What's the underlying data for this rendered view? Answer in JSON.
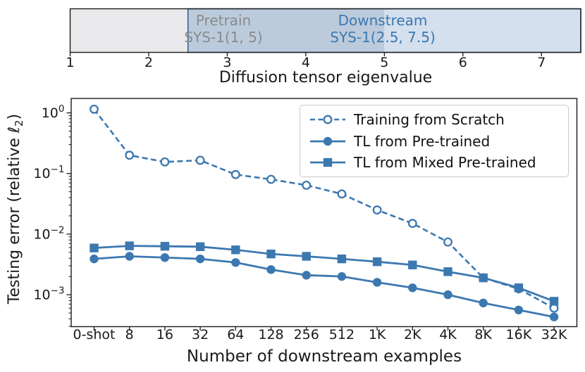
{
  "colors": {
    "accent": "#3c78b0",
    "pretrain_text": "#8a8a8a",
    "downstream_text": "#3c78b0",
    "bar_gray": "#e9e9eb",
    "bar_overlap": "#bccbdc",
    "bar_blue": "#d4e0ee",
    "bar_blue_edge": "#2d5e94",
    "bar_border": "#1b1b1b",
    "axis": "#1a1a1a",
    "legend_border": "#c9c9c9"
  },
  "chart_data": [
    {
      "type": "bar",
      "subtype": "horizontal-range-intervals",
      "xlabel": "Diffusion tensor eigenvalue",
      "xlim": [
        1,
        7.5
      ],
      "xticks": [
        "1",
        "2",
        "3",
        "4",
        "5",
        "6",
        "7"
      ],
      "intervals": [
        {
          "name": "Pretrain",
          "detail": "SYS-1(1, 5)",
          "range": [
            1,
            5
          ],
          "label_center_x": 3.0
        },
        {
          "name": "Downstream",
          "detail": "SYS-1(2.5, 7.5)",
          "range": [
            2.5,
            7.5
          ],
          "label_center_x": 5.0
        }
      ]
    },
    {
      "type": "line",
      "yscale": "log",
      "xlabel": "Number of downstream examples",
      "ylabel": "Testing error (relative ℓ₂)",
      "ylabel_parts": {
        "prefix": "Testing error (relative ℓ",
        "sub": "2",
        "suffix": ")"
      },
      "categories": [
        "0-shot",
        "8",
        "16",
        "32",
        "64",
        "128",
        "256",
        "512",
        "1K",
        "2K",
        "4K",
        "8K",
        "16K",
        "32K"
      ],
      "ytick_base": "10",
      "ytick_exponents": [
        "0",
        "−1",
        "−2",
        "−3"
      ],
      "ylim": [
        0.0003,
        1.73
      ],
      "grid": false,
      "legend_position": "upper right",
      "series": [
        {
          "name": "Training from Scratch",
          "marker": "open-circle",
          "line": "dashed",
          "values": [
            1.15,
            0.2,
            0.155,
            0.165,
            0.096,
            0.08,
            0.064,
            0.046,
            0.025,
            0.015,
            0.0074,
            0.0019,
            0.00125,
            0.0006
          ]
        },
        {
          "name": "TL from Pre-trained",
          "marker": "filled-circle",
          "line": "solid",
          "values": [
            0.0039,
            0.0043,
            0.0041,
            0.0039,
            0.0034,
            0.0026,
            0.0021,
            0.002,
            0.0016,
            0.0013,
            0.001,
            0.00073,
            0.00056,
            0.00043
          ]
        },
        {
          "name": "TL from Mixed Pre-trained",
          "marker": "filled-square",
          "line": "solid",
          "values": [
            0.0059,
            0.0064,
            0.0063,
            0.0062,
            0.0055,
            0.0047,
            0.0043,
            0.0039,
            0.0035,
            0.0031,
            0.0024,
            0.0019,
            0.0013,
            0.00078
          ]
        }
      ]
    }
  ]
}
